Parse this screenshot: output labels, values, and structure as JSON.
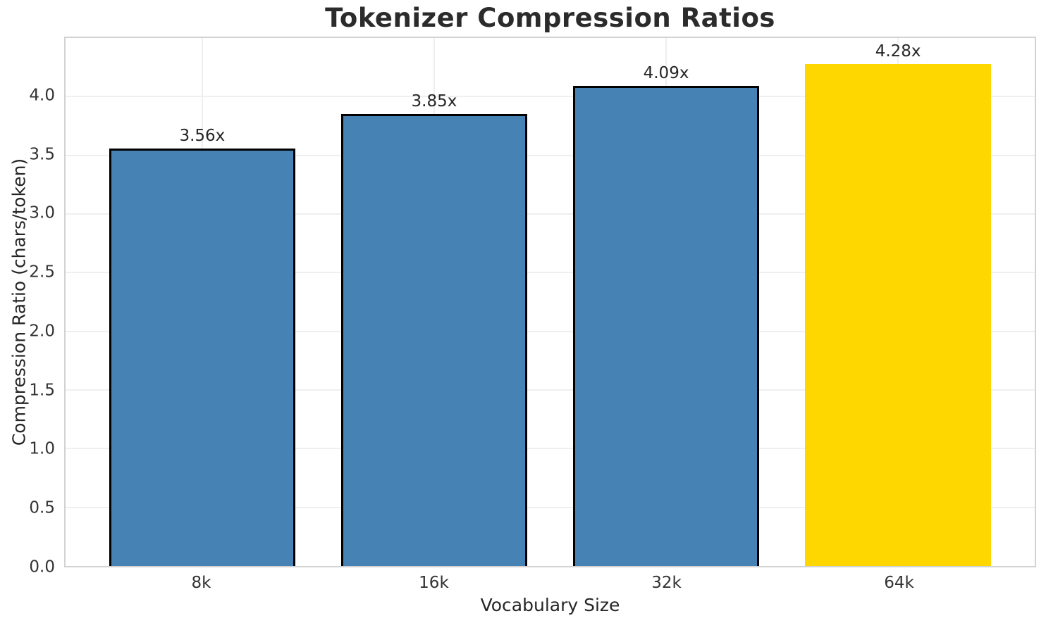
{
  "chart_data": {
    "type": "bar",
    "title": "Tokenizer Compression Ratios",
    "xlabel": "Vocabulary Size",
    "ylabel": "Compression Ratio (chars/token)",
    "categories": [
      "8k",
      "16k",
      "32k",
      "64k"
    ],
    "values": [
      3.56,
      3.85,
      4.09,
      4.28
    ],
    "bar_labels": [
      "3.56x",
      "3.85x",
      "4.09x",
      "4.28x"
    ],
    "highlight_index": 3,
    "ylim": [
      0,
      4.5
    ],
    "yticks": [
      0.0,
      0.5,
      1.0,
      1.5,
      2.0,
      2.5,
      3.0,
      3.5,
      4.0
    ],
    "ytick_labels": [
      "0.0",
      "0.5",
      "1.0",
      "1.5",
      "2.0",
      "2.5",
      "3.0",
      "3.5",
      "4.0"
    ],
    "grid": true,
    "legend": "none",
    "colors": {
      "bar": "#4682B4",
      "highlight_bar": "#FFD700",
      "bar_edge": "#000000",
      "grid": "#efefef",
      "spine": "#d2d2d2",
      "text": "#262626",
      "tick_text": "#333333",
      "title_text": "#2b2b2b"
    }
  }
}
